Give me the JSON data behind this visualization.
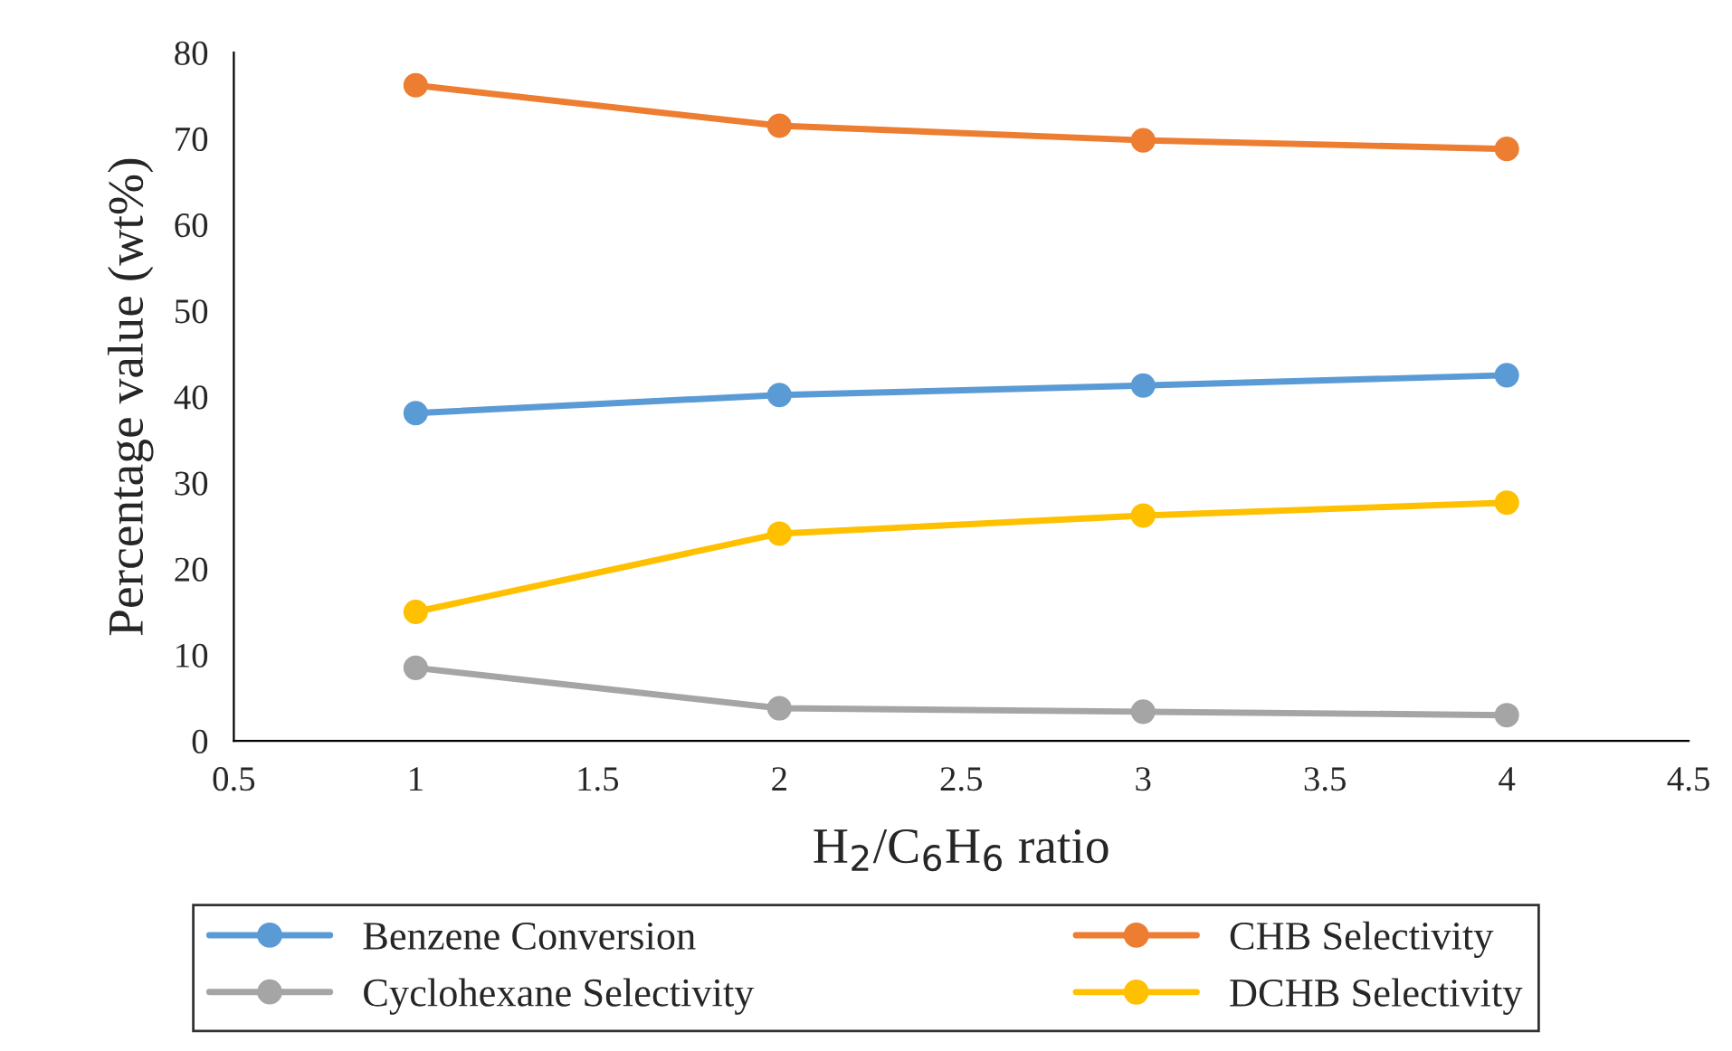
{
  "chart_data": {
    "type": "line",
    "xlabel": "H$_{2}$/C$_{6}$H$_{6}$ ratio",
    "ylabel": "Percentage value (wt%)",
    "x": [
      1,
      2,
      3,
      4
    ],
    "series": [
      {
        "name": "Benzene Conversion",
        "color": "#5b9bd5",
        "values": [
          38.1,
          40.2,
          41.3,
          42.5
        ]
      },
      {
        "name": "CHB Selectivity",
        "color": "#ed7d31",
        "values": [
          76.2,
          71.5,
          69.8,
          68.8
        ]
      },
      {
        "name": "Cyclohexane Selectivity",
        "color": "#a5a5a5",
        "values": [
          8.5,
          3.8,
          3.4,
          3.0
        ]
      },
      {
        "name": "DCHB Selectivity",
        "color": "#ffc000",
        "values": [
          15.0,
          24.1,
          26.2,
          27.7
        ]
      }
    ],
    "xlim": [
      0.5,
      4.5
    ],
    "xticks": [
      0.5,
      1,
      1.5,
      2,
      2.5,
      3,
      3.5,
      4,
      4.5
    ],
    "ylim": [
      0,
      80
    ],
    "yticks": [
      0,
      10,
      20,
      30,
      40,
      50,
      60,
      70,
      80
    ],
    "grid": false,
    "legend": "bottom",
    "marker": "circle",
    "line_style": "solid"
  }
}
